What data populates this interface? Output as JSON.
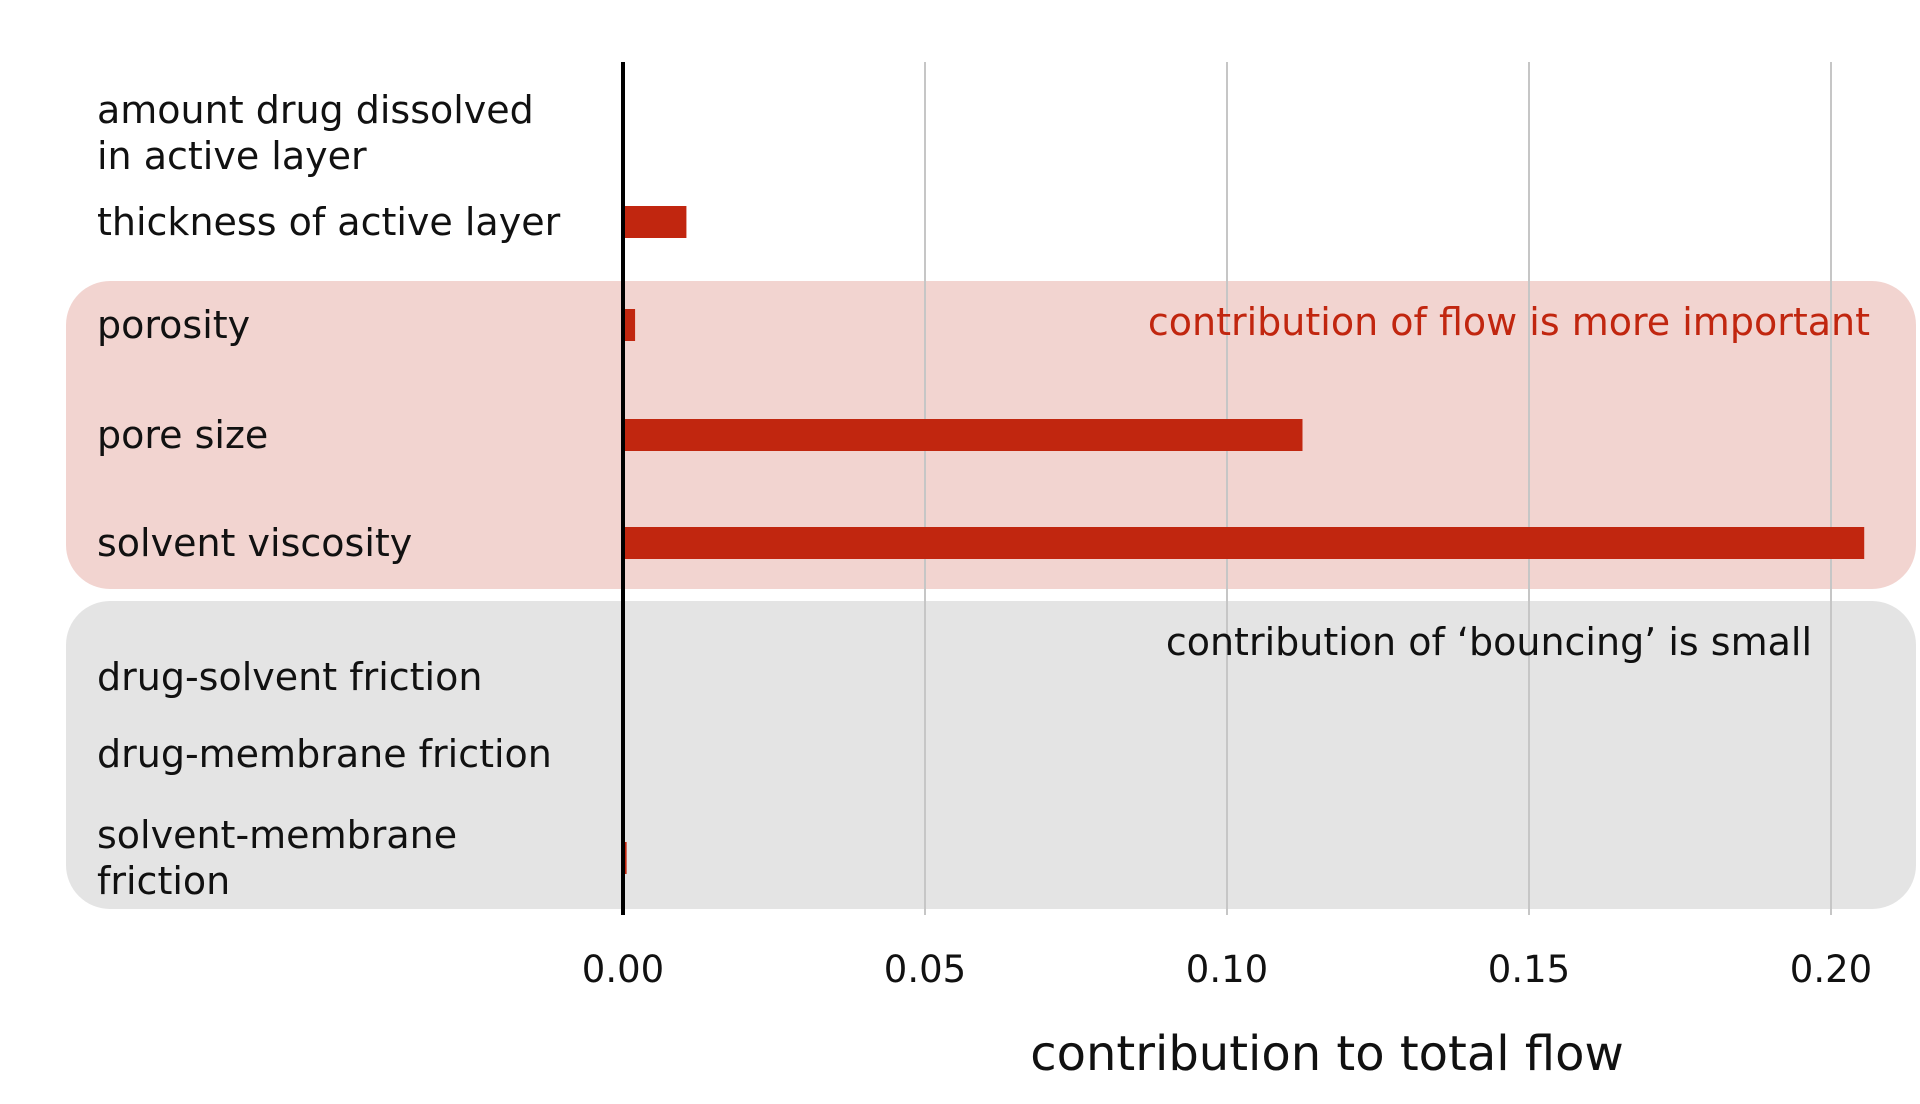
{
  "chart_data": {
    "type": "bar",
    "orientation": "horizontal",
    "categories": [
      [
        "amount drug dissolved",
        "in active layer"
      ],
      [
        "thickness of active layer"
      ],
      [
        "porosity"
      ],
      [
        "pore size"
      ],
      [
        "solvent viscosity"
      ],
      [
        "drug-solvent friction"
      ],
      [
        "drug-membrane friction"
      ],
      [
        "solvent-membrane",
        "friction"
      ]
    ],
    "values": [
      0.0,
      0.0105,
      0.002,
      0.1125,
      0.2055,
      0.0,
      0.0,
      0.0006
    ],
    "xlabel": "contribution to total flow",
    "xlim": [
      0.0,
      0.21
    ],
    "xticks": [
      "0.00",
      "0.05",
      "0.10",
      "0.15",
      "0.20"
    ],
    "xtick_values": [
      0.0,
      0.05,
      0.1,
      0.15,
      0.2
    ],
    "grid": "vertical",
    "bar_color": "#c1260f",
    "groups": [
      {
        "annotation": "contribution of flow is more important",
        "rows": [
          2,
          3,
          4
        ],
        "fill": "#f2d4d0",
        "text_color": "#c1260f"
      },
      {
        "annotation": "contribution of ‘bouncing’ is small",
        "rows": [
          5,
          6,
          7
        ],
        "fill": "#e4e4e4",
        "text_color": "#111111"
      }
    ]
  }
}
